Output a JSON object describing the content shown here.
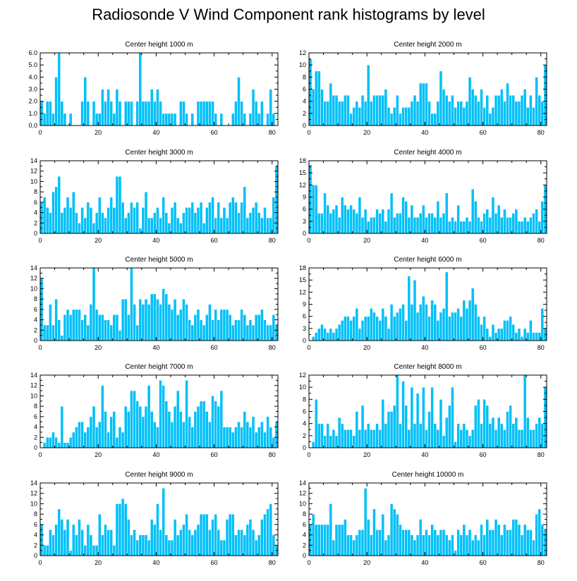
{
  "figure_title": "Radiosonde V Wind Component rank histograms by level",
  "chart_data": [
    {
      "type": "bar",
      "title": "Center height 1000 m",
      "xlim": [
        0,
        82
      ],
      "xticks": [
        0,
        20,
        40,
        60,
        80
      ],
      "ylim": [
        0,
        6
      ],
      "yticks": [
        "0.0",
        "1.0",
        "2.0",
        "3.0",
        "4.0",
        "5.0",
        "6.0"
      ],
      "values": [
        2,
        1,
        2,
        2,
        1,
        4,
        6,
        2,
        1,
        0,
        1,
        0,
        0,
        0,
        2,
        4,
        2,
        0,
        2,
        1,
        1,
        3,
        2,
        3,
        2,
        1,
        3,
        2,
        0,
        2,
        2,
        2,
        0,
        2,
        6,
        2,
        2,
        2,
        3,
        2,
        3,
        2,
        1,
        1,
        1,
        1,
        1,
        0,
        2,
        2,
        1,
        0,
        1,
        0,
        2,
        2,
        2,
        2,
        2,
        2,
        1,
        0,
        1,
        0,
        0,
        0,
        1,
        2,
        4,
        2,
        1,
        0,
        1,
        3,
        2,
        1,
        2,
        0,
        1,
        3,
        1,
        0
      ]
    },
    {
      "type": "bar",
      "title": "Center height 2000 m",
      "xlim": [
        0,
        82
      ],
      "xticks": [
        0,
        20,
        40,
        60,
        80
      ],
      "ylim": [
        0,
        12
      ],
      "yticks": [
        "0",
        "2",
        "4",
        "6",
        "8",
        "10",
        "12"
      ],
      "values": [
        11,
        6,
        9,
        9,
        6,
        4,
        4,
        7,
        5,
        5,
        4,
        4,
        5,
        5,
        2,
        3,
        4,
        3,
        5,
        4,
        10,
        4,
        5,
        5,
        5,
        5,
        6,
        3,
        2,
        3,
        5,
        2,
        3,
        3,
        3,
        4,
        5,
        4,
        7,
        7,
        7,
        4,
        2,
        2,
        4,
        9,
        6,
        5,
        4,
        5,
        3,
        4,
        4,
        3,
        4,
        8,
        6,
        5,
        4,
        6,
        3,
        5,
        2,
        3,
        5,
        5,
        6,
        4,
        7,
        5,
        5,
        4,
        4,
        5,
        6,
        3,
        5,
        3,
        8,
        5,
        4,
        10
      ]
    },
    {
      "type": "bar",
      "title": "Center height 3000 m",
      "xlim": [
        0,
        82
      ],
      "xticks": [
        0,
        20,
        40,
        60,
        80
      ],
      "ylim": [
        0,
        14
      ],
      "yticks": [
        "0",
        "2",
        "4",
        "6",
        "8",
        "10",
        "12",
        "14"
      ],
      "values": [
        6,
        7,
        5,
        4,
        8,
        9,
        11,
        4,
        5,
        7,
        5,
        8,
        4,
        2,
        5,
        3,
        6,
        5,
        2,
        4,
        7,
        4,
        3,
        5,
        7,
        5,
        11,
        11,
        6,
        3,
        4,
        6,
        5,
        6,
        1,
        5,
        8,
        3,
        3,
        4,
        5,
        3,
        7,
        4,
        2,
        5,
        6,
        3,
        2,
        4,
        5,
        5,
        6,
        4,
        5,
        6,
        2,
        5,
        6,
        7,
        3,
        6,
        3,
        5,
        3,
        6,
        7,
        6,
        4,
        6,
        9,
        3,
        4,
        5,
        6,
        4,
        3,
        5,
        3,
        3,
        7,
        13
      ]
    },
    {
      "type": "bar",
      "title": "Center height 4000 m",
      "xlim": [
        0,
        82
      ],
      "xticks": [
        0,
        20,
        40,
        60,
        80
      ],
      "ylim": [
        0,
        18
      ],
      "yticks": [
        "0",
        "3",
        "6",
        "9",
        "12",
        "15",
        "18"
      ],
      "values": [
        17,
        12,
        12,
        5,
        5,
        10,
        7,
        5,
        6,
        7,
        4,
        9,
        7,
        6,
        7,
        6,
        5,
        9,
        4,
        6,
        3,
        4,
        4,
        6,
        5,
        6,
        3,
        6,
        10,
        4,
        5,
        5,
        9,
        8,
        4,
        7,
        4,
        4,
        5,
        7,
        4,
        5,
        5,
        4,
        8,
        4,
        5,
        10,
        3,
        4,
        3,
        7,
        3,
        3,
        4,
        3,
        11,
        8,
        4,
        3,
        5,
        6,
        4,
        9,
        5,
        7,
        4,
        6,
        4,
        4,
        5,
        6,
        3,
        3,
        4,
        3,
        4,
        5,
        6,
        3,
        8,
        12
      ]
    },
    {
      "type": "bar",
      "title": "Center height 5000 m",
      "xlim": [
        0,
        82
      ],
      "xticks": [
        0,
        20,
        40,
        60,
        80
      ],
      "ylim": [
        0,
        14
      ],
      "yticks": [
        "0",
        "2",
        "4",
        "6",
        "8",
        "10",
        "12",
        "14"
      ],
      "values": [
        12,
        3,
        3,
        7,
        3,
        8,
        4,
        1,
        5,
        6,
        5,
        6,
        6,
        6,
        4,
        5,
        3,
        7,
        14,
        6,
        5,
        5,
        4,
        4,
        3,
        5,
        5,
        2,
        8,
        8,
        5,
        14,
        7,
        3,
        8,
        7,
        8,
        7,
        9,
        9,
        8,
        7,
        10,
        9,
        7,
        6,
        8,
        5,
        6,
        8,
        7,
        4,
        3,
        5,
        6,
        4,
        3,
        5,
        7,
        4,
        6,
        4,
        6,
        6,
        6,
        5,
        3,
        4,
        4,
        6,
        5,
        3,
        4,
        3,
        5,
        5,
        6,
        4,
        3,
        3,
        5,
        3
      ]
    },
    {
      "type": "bar",
      "title": "Center height 6000 m",
      "xlim": [
        0,
        82
      ],
      "xticks": [
        0,
        20,
        40,
        60,
        80
      ],
      "ylim": [
        0,
        18
      ],
      "yticks": [
        "0",
        "3",
        "6",
        "9",
        "12",
        "15",
        "18"
      ],
      "values": [
        0,
        1,
        2,
        3,
        4,
        3,
        2,
        3,
        2,
        3,
        4,
        5,
        6,
        6,
        5,
        6,
        8,
        3,
        5,
        6,
        6,
        8,
        7,
        6,
        5,
        8,
        6,
        3,
        9,
        6,
        7,
        8,
        9,
        5,
        16,
        9,
        15,
        7,
        9,
        11,
        9,
        6,
        10,
        9,
        5,
        7,
        8,
        17,
        6,
        7,
        7,
        8,
        6,
        10,
        8,
        10,
        13,
        9,
        6,
        4,
        6,
        3,
        1,
        4,
        2,
        3,
        3,
        5,
        5,
        6,
        4,
        2,
        3,
        1,
        3,
        2,
        5,
        2,
        2,
        2,
        8,
        3
      ]
    },
    {
      "type": "bar",
      "title": "Center height 7000 m",
      "xlim": [
        0,
        82
      ],
      "xticks": [
        0,
        20,
        40,
        60,
        80
      ],
      "ylim": [
        0,
        14
      ],
      "yticks": [
        "0",
        "2",
        "4",
        "6",
        "8",
        "10",
        "12",
        "14"
      ],
      "values": [
        0,
        1,
        2,
        2,
        3,
        2,
        1,
        8,
        1,
        1,
        2,
        3,
        4,
        5,
        5,
        3,
        4,
        6,
        8,
        4,
        5,
        12,
        7,
        3,
        6,
        7,
        2,
        4,
        3,
        8,
        7,
        11,
        11,
        9,
        8,
        6,
        8,
        12,
        7,
        5,
        4,
        13,
        12,
        9,
        7,
        5,
        8,
        11,
        7,
        5,
        13,
        6,
        4,
        7,
        8,
        9,
        9,
        7,
        5,
        10,
        9,
        8,
        11,
        4,
        4,
        4,
        3,
        4,
        5,
        4,
        7,
        5,
        4,
        6,
        3,
        4,
        5,
        3,
        6,
        4,
        2,
        5
      ]
    },
    {
      "type": "bar",
      "title": "Center height 8000 m",
      "xlim": [
        0,
        82
      ],
      "xticks": [
        0,
        20,
        40,
        60,
        80
      ],
      "ylim": [
        0,
        12
      ],
      "yticks": [
        "0",
        "2",
        "4",
        "6",
        "8",
        "10",
        "12"
      ],
      "values": [
        0,
        1,
        8,
        4,
        4,
        2,
        4,
        2,
        3,
        2,
        5,
        4,
        3,
        3,
        3,
        2,
        6,
        3,
        7,
        3,
        4,
        3,
        3,
        4,
        3,
        8,
        4,
        6,
        6,
        7,
        12,
        4,
        11,
        7,
        3,
        10,
        4,
        9,
        4,
        10,
        3,
        6,
        10,
        4,
        3,
        8,
        2,
        5,
        7,
        10,
        1,
        4,
        3,
        4,
        3,
        2,
        3,
        7,
        8,
        4,
        8,
        7,
        4,
        5,
        3,
        5,
        4,
        3,
        6,
        7,
        4,
        5,
        3,
        3,
        12,
        5,
        3,
        3,
        4,
        5,
        4,
        10
      ]
    },
    {
      "type": "bar",
      "title": "Center height 9000 m",
      "xlim": [
        0,
        82
      ],
      "xticks": [
        0,
        20,
        40,
        60,
        80
      ],
      "ylim": [
        0,
        14
      ],
      "yticks": [
        "0",
        "2",
        "4",
        "6",
        "8",
        "10",
        "12",
        "14"
      ],
      "values": [
        6,
        2,
        2,
        5,
        4,
        6,
        9,
        7,
        5,
        7,
        1,
        6,
        4,
        7,
        5,
        2,
        6,
        4,
        2,
        2,
        8,
        4,
        6,
        5,
        5,
        2,
        10,
        10,
        11,
        10,
        7,
        4,
        5,
        3,
        4,
        4,
        4,
        3,
        7,
        6,
        10,
        5,
        13,
        4,
        3,
        3,
        7,
        4,
        5,
        6,
        8,
        5,
        4,
        5,
        6,
        8,
        8,
        8,
        5,
        7,
        8,
        5,
        3,
        3,
        7,
        8,
        8,
        4,
        5,
        5,
        4,
        6,
        7,
        5,
        3,
        4,
        7,
        8,
        9,
        10,
        4,
        2
      ]
    },
    {
      "type": "bar",
      "title": "Center height 10000 m",
      "xlim": [
        0,
        82
      ],
      "xticks": [
        0,
        20,
        40,
        60,
        80
      ],
      "ylim": [
        0,
        14
      ],
      "yticks": [
        "0",
        "2",
        "4",
        "6",
        "8",
        "10",
        "12",
        "14"
      ],
      "values": [
        6,
        8,
        6,
        6,
        6,
        6,
        6,
        10,
        3,
        6,
        6,
        6,
        7,
        4,
        4,
        3,
        4,
        5,
        5,
        13,
        7,
        4,
        9,
        5,
        5,
        8,
        3,
        4,
        10,
        9,
        8,
        6,
        5,
        5,
        5,
        4,
        3,
        4,
        7,
        4,
        5,
        4,
        6,
        5,
        4,
        5,
        5,
        4,
        3,
        4,
        1,
        5,
        4,
        6,
        4,
        5,
        3,
        4,
        3,
        6,
        4,
        7,
        5,
        5,
        7,
        6,
        4,
        6,
        5,
        5,
        7,
        7,
        6,
        4,
        6,
        5,
        5,
        3,
        8,
        9,
        6,
        5
      ]
    }
  ]
}
